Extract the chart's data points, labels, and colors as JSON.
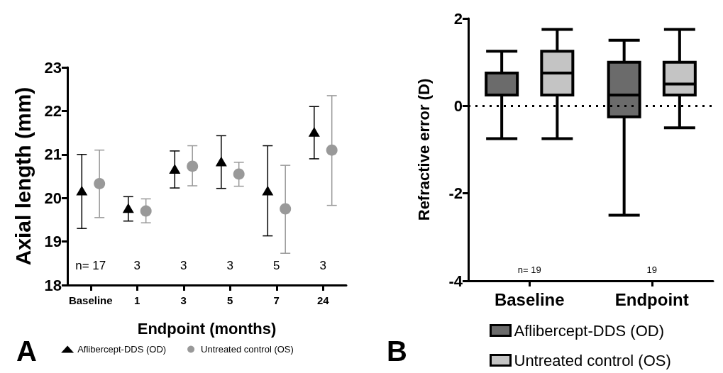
{
  "chart_data": [
    {
      "type": "scatter",
      "xlabel": "Endpoint (months)",
      "ylabel": "Axial length (mm)",
      "categories": [
        "Baseline",
        "1",
        "3",
        "5",
        "7",
        "24"
      ],
      "ylim": [
        18,
        23
      ],
      "yticks": [
        18,
        19,
        20,
        21,
        22,
        23
      ],
      "legend": "bottom",
      "grid": false,
      "series": [
        {
          "name": "Aflibercept-DDS (OD)",
          "color": "#000000",
          "marker": "triangle",
          "values": [
            20.15,
            19.75,
            20.65,
            20.82,
            20.15,
            21.5
          ],
          "errors": [
            [
              19.3,
              21.0
            ],
            [
              19.47,
              20.03
            ],
            [
              20.23,
              21.08
            ],
            [
              20.22,
              21.43
            ],
            [
              19.13,
              21.2
            ],
            [
              20.9,
              22.1
            ]
          ]
        },
        {
          "name": "Untreated control (OS)",
          "color": "#999999",
          "marker": "circle",
          "values": [
            20.33,
            19.7,
            20.73,
            20.55,
            19.75,
            21.1
          ],
          "errors": [
            [
              19.55,
              21.1
            ],
            [
              19.43,
              19.98
            ],
            [
              20.28,
              21.2
            ],
            [
              20.27,
              20.82
            ],
            [
              18.73,
              20.75
            ],
            [
              19.83,
              22.35
            ]
          ]
        }
      ],
      "title": "A",
      "annotations": [
        "n= 17",
        "3",
        "3",
        "3",
        "5",
        "3"
      ]
    },
    {
      "type": "box",
      "ylabel": "Refractive error (D)",
      "categories": [
        "Baseline",
        "Endpoint"
      ],
      "ylim": [
        -4,
        2
      ],
      "yticks": [
        -4,
        -2,
        0,
        2
      ],
      "legend": "bottom left",
      "grid": false,
      "series": [
        {
          "name": "Aflibercept-DDS (OD)",
          "color": "#6b6b6b",
          "boxes": [
            {
              "low": -0.75,
              "q1": 0.25,
              "median": 0.75,
              "q3": 0.75,
              "high": 1.25
            },
            {
              "low": -2.5,
              "q1": -0.25,
              "median": 0.25,
              "q3": 1.0,
              "high": 1.5
            }
          ]
        },
        {
          "name": "Untreated control (OS)",
          "color": "#c4c4c4",
          "boxes": [
            {
              "low": -0.75,
              "q1": 0.25,
              "median": 0.75,
              "q3": 1.25,
              "high": 1.75
            },
            {
              "low": -0.5,
              "q1": 0.25,
              "median": 0.5,
              "q3": 1.0,
              "high": 1.75
            }
          ]
        }
      ],
      "ref_lines": [
        {
          "axis": "y",
          "value": 0,
          "line_style": "dotted",
          "color": "#000000"
        }
      ],
      "title": "B",
      "annotations": [
        "n= 19",
        "19"
      ]
    }
  ]
}
